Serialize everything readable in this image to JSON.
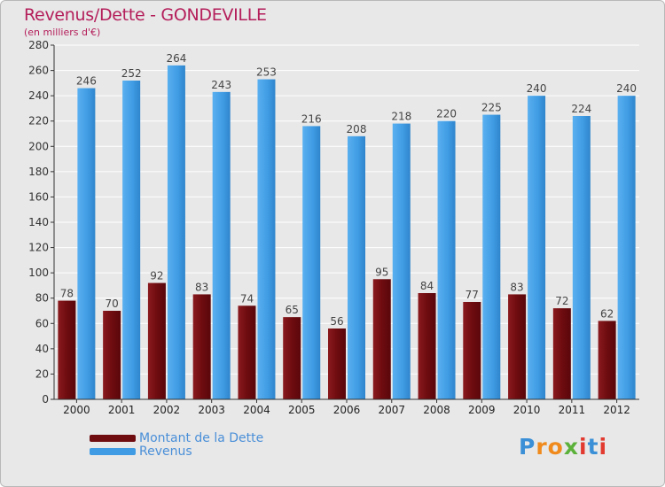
{
  "header": {
    "title": "Revenus/Dette - GONDEVILLE",
    "subtitle": "(en milliers d'€)"
  },
  "colors": {
    "dette": "#7a0f14",
    "revenus": "#3f9be3",
    "title": "#b41e5a",
    "legend_text": "#4a8fd8"
  },
  "chart_data": {
    "type": "bar",
    "title": "Revenus/Dette - GONDEVILLE",
    "ylabel": "(en milliers d'€)",
    "xlabel": "",
    "categories": [
      "2000",
      "2001",
      "2002",
      "2003",
      "2004",
      "2005",
      "2006",
      "2007",
      "2008",
      "2009",
      "2010",
      "2011",
      "2012"
    ],
    "series": [
      {
        "name": "Montant de la Dette",
        "values": [
          78,
          70,
          92,
          83,
          74,
          65,
          56,
          95,
          84,
          77,
          83,
          72,
          62
        ]
      },
      {
        "name": "Revenus",
        "values": [
          246,
          252,
          264,
          243,
          253,
          216,
          208,
          218,
          220,
          225,
          240,
          224,
          240
        ]
      }
    ],
    "ylim": [
      0,
      280
    ],
    "yticks": [
      0,
      20,
      40,
      60,
      80,
      100,
      120,
      140,
      160,
      180,
      200,
      220,
      240,
      260,
      280
    ],
    "grid": true,
    "legend": "bottom-left"
  },
  "legend": {
    "items": [
      {
        "label": "Montant de la Dette",
        "color": "#7a0f14"
      },
      {
        "label": "Revenus",
        "color": "#3f9be3"
      }
    ]
  },
  "logo": {
    "text": "Proxiti",
    "letters": [
      "P",
      "r",
      "o",
      "x",
      "i",
      "t",
      "i"
    ],
    "letter_colors": [
      "#3a8fd6",
      "#f08a1c",
      "#f08a1c",
      "#5bb13a",
      "#e23a2f",
      "#3a8fd6",
      "#e23a2f"
    ]
  }
}
